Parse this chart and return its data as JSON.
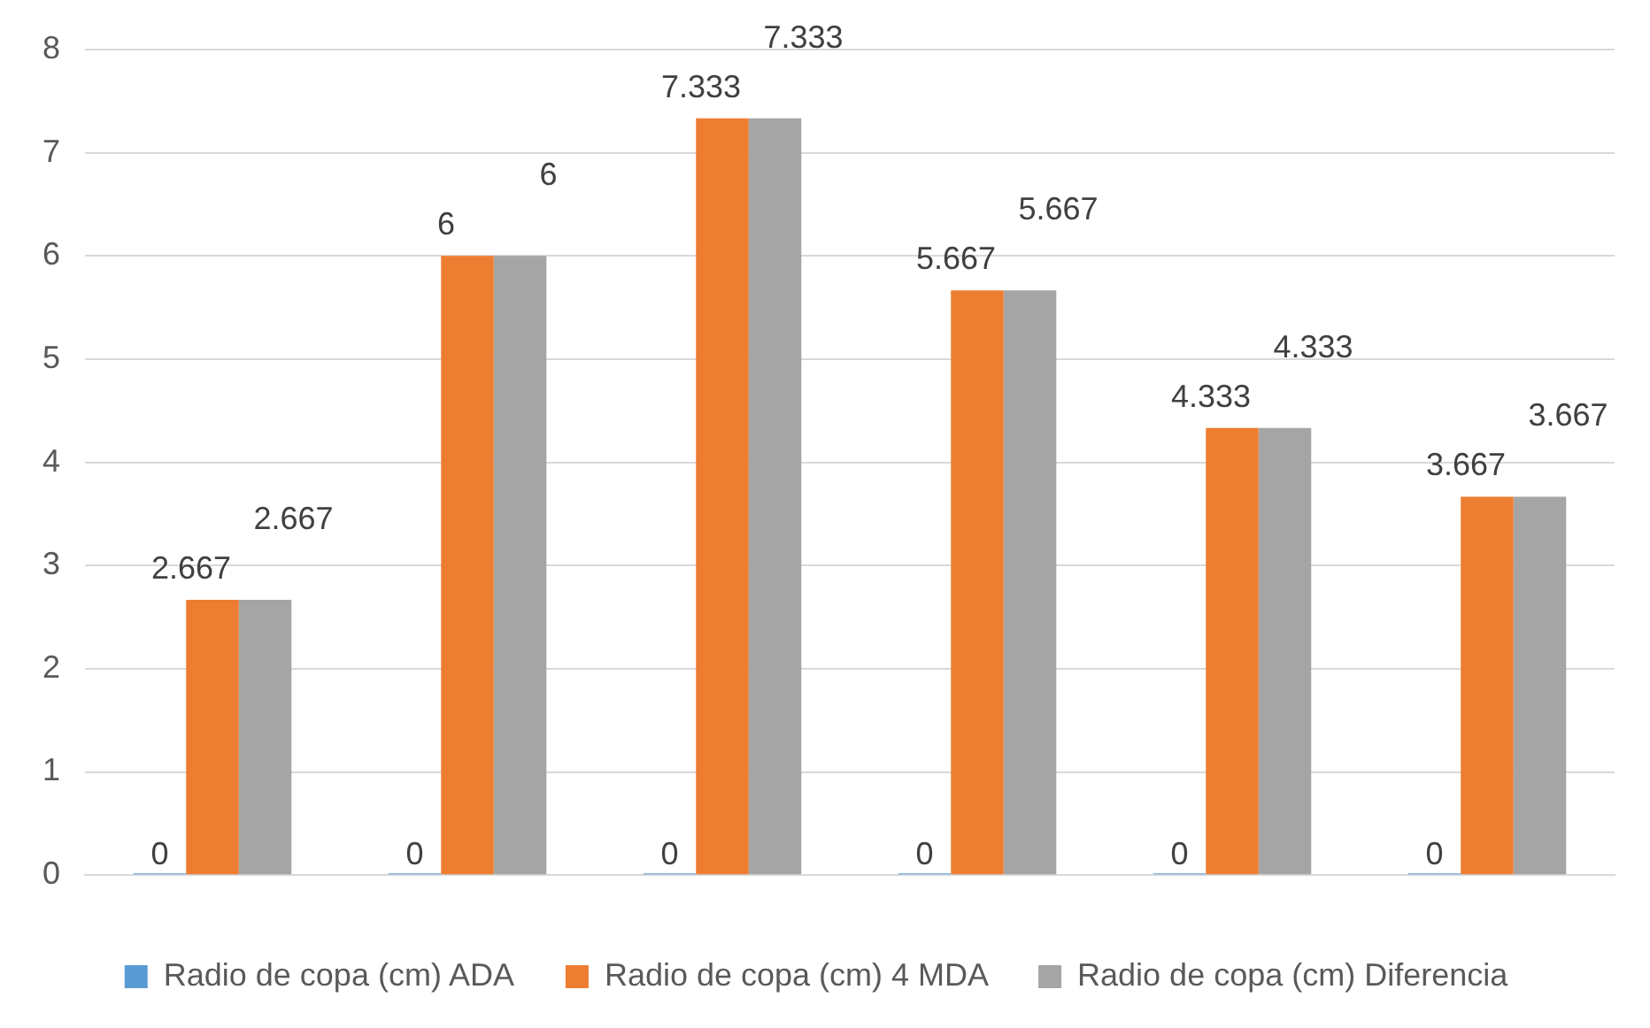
{
  "chart_data": {
    "type": "bar",
    "categories": [
      null,
      null,
      null,
      null,
      null,
      null
    ],
    "series": [
      {
        "name": "Radio de copa (cm) ADA",
        "color": "#5b9bd5",
        "values": [
          0,
          0,
          0,
          0,
          0,
          0
        ]
      },
      {
        "name": "Radio de copa (cm) 4 MDA",
        "color": "#ed7d31",
        "values": [
          2.667,
          6,
          7.333,
          5.667,
          4.333,
          3.667
        ]
      },
      {
        "name": "Radio de copa (cm) Diferencia",
        "color": "#a5a5a5",
        "values": [
          2.667,
          6,
          7.333,
          5.667,
          4.333,
          3.667
        ]
      }
    ],
    "ylim": [
      0,
      8
    ],
    "yticks": [
      0,
      1,
      2,
      3,
      4,
      5,
      6,
      7,
      8
    ],
    "grid": "y",
    "legend": "bottom",
    "data_labels": true
  }
}
